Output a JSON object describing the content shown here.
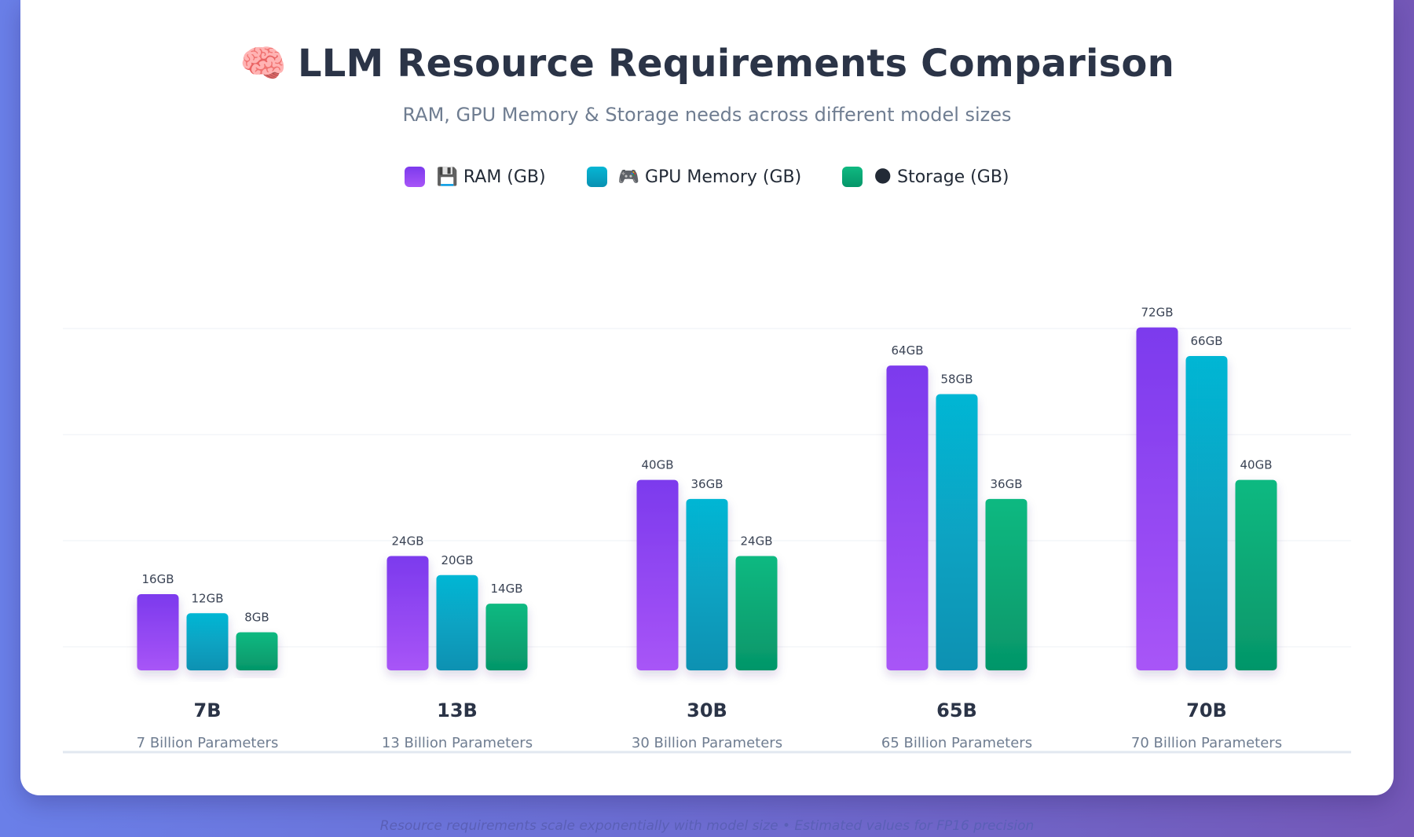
{
  "header": {
    "icon": "brain-icon",
    "emoji": "🧠",
    "title": "LLM Resource Requirements Comparison",
    "subtitle": "RAM, GPU Memory & Storage needs across different model sizes"
  },
  "legend": [
    {
      "label": "💾 RAM (GB)",
      "color": "#8b47f0"
    },
    {
      "label": "🎮 GPU Memory (GB)",
      "color": "#07aacf"
    },
    {
      "label": "🌑 Storage (GB)",
      "color": "#0eab6d"
    }
  ],
  "footer": {
    "note": "Resource requirements scale exponentially with model size • Estimated values for FP16 precision"
  },
  "chart_data": {
    "type": "bar",
    "title": "LLM Resource Requirements Comparison",
    "subtitle": "RAM, GPU Memory & Storage needs across different model sizes",
    "categories": [
      "7B",
      "13B",
      "30B",
      "65B",
      "70B"
    ],
    "category_sublabels": [
      "7 Billion Parameters",
      "13 Billion Parameters",
      "30 Billion Parameters",
      "65 Billion Parameters",
      "70 Billion Parameters"
    ],
    "series": [
      {
        "name": "💾 RAM (GB)",
        "values": [
          16,
          24,
          40,
          64,
          72
        ],
        "labels": [
          "16GB",
          "24GB",
          "40GB",
          "64GB",
          "72GB"
        ],
        "color_top": "#7c3aed",
        "color_bottom": "#a855f7"
      },
      {
        "name": "🎮 GPU Memory (GB)",
        "values": [
          12,
          20,
          36,
          58,
          66
        ],
        "labels": [
          "12GB",
          "20GB",
          "36GB",
          "58GB",
          "66GB"
        ],
        "color_top": "#06b6d4",
        "color_bottom": "#0891b2"
      },
      {
        "name": "🌑 Storage (GB)",
        "values": [
          8,
          14,
          24,
          36,
          40
        ],
        "labels": [
          "8GB",
          "14GB",
          "24GB",
          "36GB",
          "40GB"
        ],
        "color_top": "#10b981",
        "color_bottom": "#059669"
      }
    ],
    "ylim": [
      0,
      80
    ],
    "grid": true,
    "legend_position": "top-center"
  }
}
